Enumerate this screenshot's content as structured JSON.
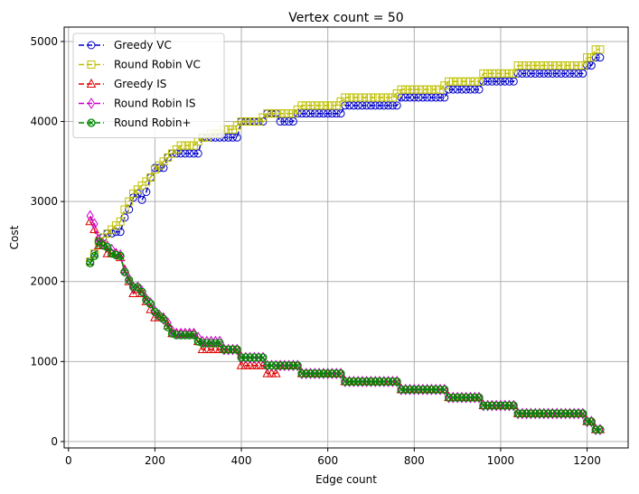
{
  "chart_data": {
    "type": "line",
    "title": "Vertex count = 50",
    "xlabel": "Edge count",
    "ylabel": "Cost",
    "xlim": [
      -10,
      1295
    ],
    "ylim": [
      -80,
      5180
    ],
    "xticks": [
      0,
      200,
      400,
      600,
      800,
      1000,
      1200
    ],
    "yticks": [
      0,
      1000,
      2000,
      3000,
      4000,
      5000
    ],
    "grid": true,
    "legend_position": "top-left",
    "series": [
      {
        "name": "Greedy VC",
        "color": "#0000cc",
        "marker": "circle",
        "x": [
          50,
          60,
          70,
          80,
          90,
          100,
          110,
          120,
          130,
          140,
          150,
          160,
          170,
          180,
          190,
          200,
          210,
          220,
          230,
          240,
          250,
          260,
          270,
          280,
          290,
          300,
          310,
          320,
          330,
          340,
          350,
          360,
          370,
          380,
          390,
          400,
          410,
          420,
          430,
          440,
          450,
          460,
          470,
          480,
          490,
          500,
          510,
          520,
          530,
          540,
          550,
          560,
          570,
          580,
          590,
          600,
          610,
          620,
          630,
          640,
          650,
          660,
          670,
          680,
          690,
          700,
          710,
          720,
          730,
          740,
          750,
          760,
          770,
          780,
          790,
          800,
          810,
          820,
          830,
          840,
          850,
          860,
          870,
          880,
          890,
          900,
          910,
          920,
          930,
          940,
          950,
          960,
          970,
          980,
          990,
          1000,
          1010,
          1020,
          1030,
          1040,
          1050,
          1060,
          1070,
          1080,
          1090,
          1100,
          1110,
          1120,
          1130,
          1140,
          1150,
          1160,
          1170,
          1180,
          1190,
          1200,
          1210,
          1220,
          1230
        ],
        "y": [
          2250,
          2350,
          2500,
          2550,
          2600,
          2600,
          2620,
          2620,
          2800,
          2900,
          3050,
          3100,
          3020,
          3120,
          3300,
          3420,
          3420,
          3420,
          3550,
          3600,
          3600,
          3600,
          3600,
          3600,
          3600,
          3600,
          3800,
          3800,
          3800,
          3800,
          3800,
          3800,
          3800,
          3800,
          3800,
          4000,
          4000,
          4000,
          4000,
          4000,
          4000,
          4100,
          4100,
          4100,
          4000,
          4000,
          4000,
          4000,
          4100,
          4100,
          4100,
          4100,
          4100,
          4100,
          4100,
          4100,
          4100,
          4100,
          4100,
          4200,
          4200,
          4200,
          4200,
          4200,
          4200,
          4200,
          4200,
          4200,
          4200,
          4200,
          4200,
          4200,
          4300,
          4300,
          4300,
          4300,
          4300,
          4300,
          4300,
          4300,
          4300,
          4300,
          4300,
          4400,
          4400,
          4400,
          4400,
          4400,
          4400,
          4400,
          4400,
          4500,
          4500,
          4500,
          4500,
          4500,
          4500,
          4500,
          4500,
          4600,
          4600,
          4600,
          4600,
          4600,
          4600,
          4600,
          4600,
          4600,
          4600,
          4600,
          4600,
          4600,
          4600,
          4600,
          4600,
          4700,
          4700,
          4800,
          4800
        ]
      },
      {
        "name": "Round Robin VC",
        "color": "#bfbf00",
        "marker": "square",
        "x": [
          50,
          60,
          70,
          80,
          90,
          100,
          110,
          120,
          130,
          140,
          150,
          160,
          170,
          180,
          190,
          200,
          210,
          220,
          230,
          240,
          250,
          260,
          270,
          280,
          290,
          300,
          310,
          320,
          330,
          340,
          350,
          360,
          370,
          380,
          390,
          400,
          410,
          420,
          430,
          440,
          450,
          460,
          470,
          480,
          490,
          500,
          510,
          520,
          530,
          540,
          550,
          560,
          570,
          580,
          590,
          600,
          610,
          620,
          630,
          640,
          650,
          660,
          670,
          680,
          690,
          700,
          710,
          720,
          730,
          740,
          750,
          760,
          770,
          780,
          790,
          800,
          810,
          820,
          830,
          840,
          850,
          860,
          870,
          880,
          890,
          900,
          910,
          920,
          930,
          940,
          950,
          960,
          970,
          980,
          990,
          1000,
          1010,
          1020,
          1030,
          1040,
          1050,
          1060,
          1070,
          1080,
          1090,
          1100,
          1110,
          1120,
          1130,
          1140,
          1150,
          1160,
          1170,
          1180,
          1190,
          1200,
          1210,
          1220,
          1230
        ],
        "y": [
          2250,
          2350,
          2500,
          2550,
          2600,
          2650,
          2700,
          2750,
          2900,
          3000,
          3100,
          3150,
          3200,
          3250,
          3300,
          3400,
          3450,
          3500,
          3550,
          3600,
          3650,
          3700,
          3700,
          3700,
          3700,
          3750,
          3800,
          3800,
          3850,
          3850,
          3850,
          3900,
          3900,
          3900,
          3950,
          4000,
          4000,
          4000,
          4000,
          4000,
          4050,
          4100,
          4100,
          4100,
          4100,
          4100,
          4100,
          4100,
          4150,
          4200,
          4200,
          4200,
          4200,
          4200,
          4200,
          4200,
          4200,
          4200,
          4250,
          4300,
          4300,
          4300,
          4300,
          4300,
          4300,
          4300,
          4300,
          4300,
          4300,
          4300,
          4300,
          4350,
          4400,
          4400,
          4400,
          4400,
          4400,
          4400,
          4400,
          4400,
          4400,
          4400,
          4450,
          4500,
          4500,
          4500,
          4500,
          4500,
          4500,
          4500,
          4500,
          4600,
          4600,
          4600,
          4600,
          4600,
          4600,
          4600,
          4600,
          4700,
          4700,
          4700,
          4700,
          4700,
          4700,
          4700,
          4700,
          4700,
          4700,
          4700,
          4700,
          4700,
          4700,
          4700,
          4700,
          4800,
          4800,
          4900,
          4900
        ]
      },
      {
        "name": "Greedy IS",
        "color": "#dd0000",
        "marker": "triangle",
        "x": [
          50,
          60,
          70,
          80,
          90,
          100,
          110,
          120,
          130,
          140,
          150,
          160,
          170,
          180,
          190,
          200,
          210,
          220,
          230,
          240,
          250,
          260,
          270,
          280,
          290,
          300,
          310,
          320,
          330,
          340,
          350,
          360,
          370,
          380,
          390,
          400,
          410,
          420,
          430,
          440,
          450,
          460,
          470,
          480,
          490,
          500,
          510,
          520,
          530,
          540,
          550,
          560,
          570,
          580,
          590,
          600,
          610,
          620,
          630,
          640,
          650,
          660,
          670,
          680,
          690,
          700,
          710,
          720,
          730,
          740,
          750,
          760,
          770,
          780,
          790,
          800,
          810,
          820,
          830,
          840,
          850,
          860,
          870,
          880,
          890,
          900,
          910,
          920,
          930,
          940,
          950,
          960,
          970,
          980,
          990,
          1000,
          1010,
          1020,
          1030,
          1040,
          1050,
          1060,
          1070,
          1080,
          1090,
          1100,
          1110,
          1120,
          1130,
          1140,
          1150,
          1160,
          1170,
          1180,
          1190,
          1200,
          1210,
          1220,
          1230
        ],
        "y": [
          2750,
          2650,
          2450,
          2450,
          2350,
          2350,
          2350,
          2300,
          2150,
          2000,
          1850,
          1900,
          1850,
          1750,
          1650,
          1550,
          1550,
          1550,
          1450,
          1350,
          1350,
          1350,
          1350,
          1350,
          1350,
          1250,
          1150,
          1150,
          1150,
          1150,
          1150,
          1150,
          1150,
          1150,
          1150,
          950,
          950,
          950,
          950,
          950,
          950,
          850,
          850,
          850,
          950,
          950,
          950,
          950,
          950,
          850,
          850,
          850,
          850,
          850,
          850,
          850,
          850,
          850,
          850,
          750,
          750,
          750,
          750,
          750,
          750,
          750,
          750,
          750,
          750,
          750,
          750,
          750,
          650,
          650,
          650,
          650,
          650,
          650,
          650,
          650,
          650,
          650,
          650,
          550,
          550,
          550,
          550,
          550,
          550,
          550,
          550,
          450,
          450,
          450,
          450,
          450,
          450,
          450,
          450,
          350,
          350,
          350,
          350,
          350,
          350,
          350,
          350,
          350,
          350,
          350,
          350,
          350,
          350,
          350,
          350,
          250,
          250,
          150,
          150
        ]
      },
      {
        "name": "Round Robin IS",
        "color": "#cc00cc",
        "marker": "diamond",
        "x": [
          50,
          60,
          70,
          80,
          90,
          100,
          110,
          120,
          130,
          140,
          150,
          160,
          170,
          180,
          190,
          200,
          210,
          220,
          230,
          240,
          250,
          260,
          270,
          280,
          290,
          300,
          310,
          320,
          330,
          340,
          350,
          360,
          370,
          380,
          390,
          400,
          410,
          420,
          430,
          440,
          450,
          460,
          470,
          480,
          490,
          500,
          510,
          520,
          530,
          540,
          550,
          560,
          570,
          580,
          590,
          600,
          610,
          620,
          630,
          640,
          650,
          660,
          670,
          680,
          690,
          700,
          710,
          720,
          730,
          740,
          750,
          760,
          770,
          780,
          790,
          800,
          810,
          820,
          830,
          840,
          850,
          860,
          870,
          880,
          890,
          900,
          910,
          920,
          930,
          940,
          950,
          960,
          970,
          980,
          990,
          1000,
          1010,
          1020,
          1030,
          1040,
          1050,
          1060,
          1070,
          1080,
          1090,
          1100,
          1110,
          1120,
          1130,
          1140,
          1150,
          1160,
          1170,
          1180,
          1190,
          1200,
          1210,
          1220,
          1230
        ],
        "y": [
          2820,
          2720,
          2520,
          2470,
          2440,
          2400,
          2350,
          2330,
          2130,
          2030,
          1930,
          1930,
          1880,
          1780,
          1730,
          1630,
          1580,
          1530,
          1480,
          1380,
          1350,
          1350,
          1350,
          1350,
          1350,
          1300,
          1250,
          1250,
          1250,
          1250,
          1250,
          1150,
          1150,
          1150,
          1150,
          1050,
          1050,
          1050,
          1050,
          1050,
          1050,
          950,
          950,
          950,
          950,
          950,
          950,
          950,
          950,
          850,
          850,
          850,
          850,
          850,
          850,
          850,
          850,
          850,
          850,
          750,
          750,
          750,
          750,
          750,
          750,
          750,
          750,
          750,
          750,
          750,
          750,
          750,
          650,
          650,
          650,
          650,
          650,
          650,
          650,
          650,
          650,
          650,
          650,
          550,
          550,
          550,
          550,
          550,
          550,
          550,
          550,
          450,
          450,
          450,
          450,
          450,
          450,
          450,
          450,
          350,
          350,
          350,
          350,
          350,
          350,
          350,
          350,
          350,
          350,
          350,
          350,
          350,
          350,
          350,
          350,
          250,
          250,
          150,
          150
        ]
      },
      {
        "name": "Round Robin+",
        "color": "#008800",
        "marker": "x-circle",
        "x": [
          50,
          60,
          70,
          80,
          90,
          100,
          110,
          120,
          130,
          140,
          150,
          160,
          170,
          180,
          190,
          200,
          210,
          220,
          230,
          240,
          250,
          260,
          270,
          280,
          290,
          300,
          310,
          320,
          330,
          340,
          350,
          360,
          370,
          380,
          390,
          400,
          410,
          420,
          430,
          440,
          450,
          460,
          470,
          480,
          490,
          500,
          510,
          520,
          530,
          540,
          550,
          560,
          570,
          580,
          590,
          600,
          610,
          620,
          630,
          640,
          650,
          660,
          670,
          680,
          690,
          700,
          710,
          720,
          730,
          740,
          750,
          760,
          770,
          780,
          790,
          800,
          810,
          820,
          830,
          840,
          850,
          860,
          870,
          880,
          890,
          900,
          910,
          920,
          930,
          940,
          950,
          960,
          970,
          980,
          990,
          1000,
          1010,
          1020,
          1030,
          1040,
          1050,
          1060,
          1070,
          1080,
          1090,
          1100,
          1110,
          1120,
          1130,
          1140,
          1150,
          1160,
          1170,
          1180,
          1190,
          1200,
          1210,
          1220,
          1230
        ],
        "y": [
          2230,
          2320,
          2500,
          2450,
          2430,
          2350,
          2330,
          2320,
          2120,
          2020,
          1930,
          1930,
          1870,
          1770,
          1720,
          1620,
          1570,
          1530,
          1430,
          1350,
          1330,
          1330,
          1330,
          1330,
          1330,
          1250,
          1230,
          1230,
          1230,
          1230,
          1230,
          1150,
          1150,
          1150,
          1150,
          1050,
          1050,
          1050,
          1050,
          1050,
          1050,
          950,
          950,
          950,
          950,
          950,
          950,
          950,
          950,
          850,
          850,
          850,
          850,
          850,
          850,
          850,
          850,
          850,
          850,
          750,
          750,
          750,
          750,
          750,
          750,
          750,
          750,
          750,
          750,
          750,
          750,
          750,
          650,
          650,
          650,
          650,
          650,
          650,
          650,
          650,
          650,
          650,
          650,
          550,
          550,
          550,
          550,
          550,
          550,
          550,
          550,
          450,
          450,
          450,
          450,
          450,
          450,
          450,
          450,
          350,
          350,
          350,
          350,
          350,
          350,
          350,
          350,
          350,
          350,
          350,
          350,
          350,
          350,
          350,
          350,
          250,
          250,
          150,
          150
        ]
      }
    ]
  }
}
